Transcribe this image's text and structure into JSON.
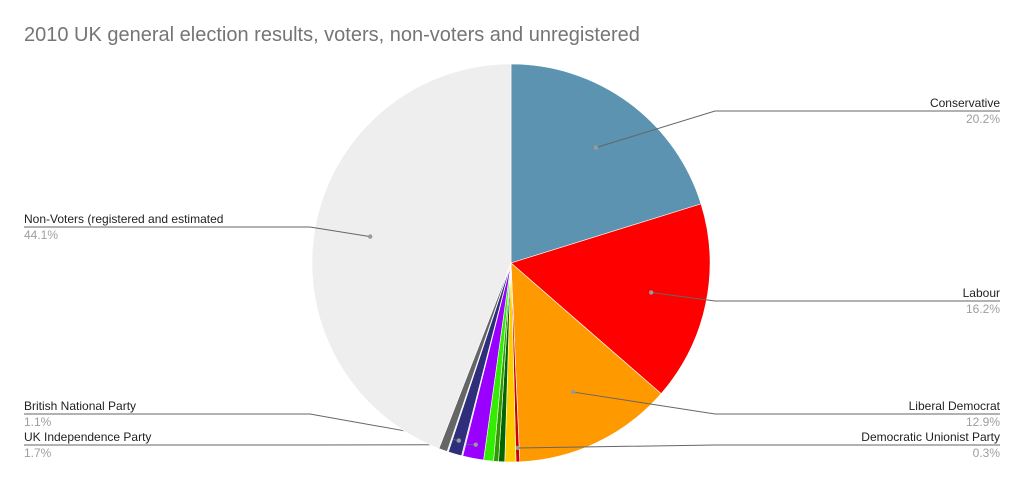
{
  "chart_data": {
    "type": "pie",
    "title": "2010 UK general election results, voters, non-voters and unregistered",
    "start_angle": "top, clockwise",
    "slices": [
      {
        "name": "Conservative",
        "value": 20.2,
        "label": "20.2%",
        "color": "#5b93b1",
        "labeled": true,
        "side": "right"
      },
      {
        "name": "Labour",
        "value": 16.2,
        "label": "16.2%",
        "color": "#ff0000",
        "labeled": true,
        "side": "right"
      },
      {
        "name": "Liberal Democrat",
        "value": 12.9,
        "label": "12.9%",
        "color": "#ff9900",
        "labeled": true,
        "side": "right"
      },
      {
        "name": "Democratic Unionist Party",
        "value": 0.3,
        "label": "0.3%",
        "color": "#cc0000",
        "labeled": true,
        "side": "right"
      },
      {
        "value": 0.9,
        "color": "#ffcc00",
        "labeled": false
      },
      {
        "value": 0.5,
        "color": "#006600",
        "labeled": false
      },
      {
        "value": 0.4,
        "color": "#339900",
        "labeled": false
      },
      {
        "value": 0.8,
        "color": "#33ee00",
        "labeled": false
      },
      {
        "name": "UK Independence Party",
        "value": 1.7,
        "label": "1.7%",
        "color": "#9900ff",
        "labeled": true,
        "side": "left"
      },
      {
        "value": 0.1,
        "color": "#ccccff",
        "labeled": false
      },
      {
        "name": "British National Party",
        "value": 1.1,
        "label": "1.1%",
        "color": "#2e2e7a",
        "labeled": true,
        "side": "left"
      },
      {
        "value": 0.1,
        "color": "#ddeeff",
        "labeled": false
      },
      {
        "value": 0.7,
        "color": "#666666",
        "labeled": false
      },
      {
        "name": "Non-Voters (registered and estimated",
        "value": 44.1,
        "label": "44.1%",
        "color": "#eeeeee",
        "labeled": true,
        "side": "left"
      }
    ],
    "legend": "none (callout labels)"
  }
}
